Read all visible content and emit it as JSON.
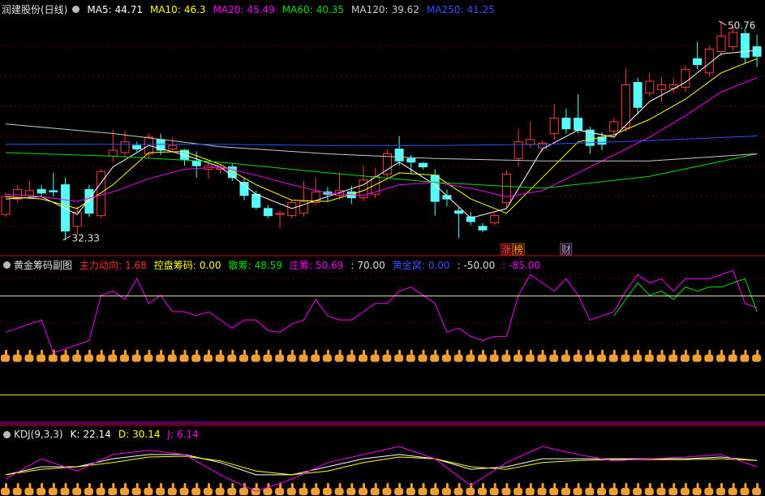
{
  "chart_data": [
    {
      "type": "candlestick",
      "title": "润建股份(日线)",
      "ylim": [
        31.1,
        52.53
      ],
      "open": [
        34.5,
        35.8,
        36.1,
        36.6,
        36.5,
        37.0,
        33.5,
        36.6,
        34.4,
        39.4,
        39.7,
        40.3,
        39.6,
        40.8,
        40.0,
        39.9,
        39.0,
        38.3,
        38.3,
        38.5,
        37.2,
        36.2,
        35.0,
        34.5,
        34.4,
        34.6,
        35.5,
        36.4,
        36.1,
        36.4,
        35.9,
        36.2,
        37.9,
        40.0,
        39.2,
        38.8,
        37.8,
        36.1,
        34.8,
        34.3,
        33.5,
        33.8,
        35.5,
        39.2,
        40.4,
        40.1,
        41.3,
        42.6,
        42.6,
        41.6,
        41.0,
        41.5,
        41.8,
        45.6,
        44.7,
        45.0,
        45.1,
        45.2,
        47.6,
        46.4,
        48.2,
        48.6,
        49.7,
        48.6
      ],
      "high": [
        36.4,
        37.0,
        37.3,
        37.0,
        38.0,
        37.6,
        35.2,
        37.0,
        38.3,
        41.6,
        41.5,
        40.6,
        41.3,
        41.3,
        41.0,
        40.0,
        39.8,
        38.9,
        38.7,
        38.8,
        37.6,
        36.5,
        35.3,
        34.8,
        35.7,
        37.3,
        37.6,
        36.8,
        38.1,
        36.9,
        38.6,
        38.4,
        40.0,
        41.1,
        39.5,
        38.9,
        38.3,
        36.6,
        35.1,
        34.7,
        33.8,
        34.6,
        38.2,
        41.7,
        42.3,
        40.7,
        43.8,
        43.4,
        44.6,
        41.9,
        41.4,
        42.6,
        46.8,
        46.0,
        46.4,
        46.0,
        46.0,
        47.0,
        49.0,
        48.7,
        50.76,
        50.3,
        50.1,
        49.6
      ],
      "low": [
        34.3,
        35.5,
        35.9,
        36.0,
        36.0,
        32.33,
        32.8,
        34.3,
        34.2,
        38.9,
        39.3,
        39.8,
        39.3,
        39.5,
        39.7,
        38.6,
        37.6,
        37.5,
        37.9,
        37.3,
        35.7,
        34.9,
        34.2,
        33.4,
        34.2,
        34.3,
        35.3,
        35.6,
        35.8,
        35.4,
        35.6,
        35.9,
        37.6,
        38.6,
        37.9,
        38.3,
        34.4,
        35.2,
        32.5,
        33.6,
        33.0,
        33.6,
        35.1,
        38.5,
        40.1,
        39.8,
        40.8,
        41.3,
        41.3,
        39.6,
        39.9,
        41.3,
        41.5,
        42.9,
        44.4,
        44.0,
        44.7,
        44.8,
        46.7,
        46.1,
        47.8,
        48.3,
        47.2,
        46.9
      ],
      "close": [
        36.0,
        36.6,
        36.5,
        36.3,
        36.4,
        33.1,
        34.7,
        34.6,
        38.1,
        39.9,
        40.6,
        40.0,
        41.0,
        39.9,
        40.3,
        39.1,
        38.6,
        38.6,
        38.4,
        37.6,
        36.1,
        35.1,
        34.4,
        34.6,
        35.5,
        35.6,
        36.4,
        36.2,
        36.5,
        35.9,
        37.4,
        37.7,
        39.6,
        39.0,
        38.9,
        38.5,
        35.6,
        35.8,
        34.6,
        33.9,
        33.2,
        34.4,
        37.9,
        40.6,
        40.8,
        40.5,
        42.6,
        41.7,
        41.6,
        40.3,
        40.4,
        42.3,
        45.4,
        43.5,
        45.7,
        45.4,
        45.4,
        46.7,
        47.1,
        48.4,
        49.5,
        49.8,
        47.7,
        47.8
      ],
      "up_color": "#ff3c3c",
      "down_color": "#54fcfc",
      "series": [
        {
          "name": "MA5:",
          "value": 44.71,
          "color": "#ffffff",
          "x": [
            0,
            3,
            6,
            9,
            12,
            15,
            18,
            21,
            24,
            27,
            30,
            33,
            36,
            39,
            42,
            45,
            48,
            51,
            54,
            57,
            60,
            63
          ],
          "values": [
            35.8,
            36.0,
            34.5,
            38.5,
            40.3,
            39.5,
            38.5,
            36.2,
            35.0,
            36.0,
            37.0,
            38.9,
            37.0,
            34.2,
            35.0,
            40.0,
            41.6,
            41.0,
            44.0,
            45.6,
            48.0,
            48.3
          ]
        },
        {
          "name": "MA10:",
          "value": 46.3,
          "color": "#ffff00",
          "x": [
            0,
            3,
            6,
            9,
            12,
            15,
            18,
            21,
            24,
            27,
            30,
            33,
            36,
            39,
            42,
            45,
            48,
            51,
            54,
            57,
            60,
            63
          ],
          "values": [
            36.0,
            35.8,
            35.0,
            37.0,
            39.7,
            39.8,
            38.7,
            37.0,
            35.7,
            35.6,
            36.5,
            38.0,
            37.8,
            35.8,
            34.6,
            37.6,
            40.6,
            41.2,
            42.5,
            44.2,
            46.4,
            47.6
          ]
        },
        {
          "name": "MA20:",
          "value": 45.49,
          "color": "#ff00ff",
          "x": [
            0,
            3,
            6,
            9,
            12,
            15,
            18,
            21,
            24,
            27,
            30,
            33,
            36,
            39,
            42,
            45,
            48,
            51,
            54,
            57,
            60,
            63
          ],
          "values": [
            36.2,
            36.0,
            35.6,
            36.4,
            37.5,
            38.3,
            38.5,
            37.8,
            37.0,
            36.3,
            36.1,
            37.0,
            37.2,
            36.7,
            36.0,
            36.5,
            38.0,
            39.5,
            41.0,
            42.8,
            44.8,
            46.0
          ]
        },
        {
          "name": "MA60:",
          "value": 40.35,
          "color": "#00e000",
          "x": [
            0,
            9,
            18,
            27,
            36,
            45,
            54,
            63
          ],
          "values": [
            39.7,
            39.4,
            38.9,
            38.0,
            37.2,
            36.7,
            37.7,
            39.6
          ]
        },
        {
          "name": "MA120:",
          "value": 39.62,
          "color": "#c8c8c8",
          "x": [
            0,
            9,
            18,
            27,
            36,
            45,
            54,
            63
          ],
          "values": [
            42.1,
            41.3,
            40.2,
            39.6,
            39.2,
            39.0,
            39.0,
            39.6
          ]
        },
        {
          "name": "MA250:",
          "value": 41.25,
          "color": "#2f4fff",
          "x": [
            0,
            9,
            18,
            27,
            36,
            45,
            54,
            63
          ],
          "values": [
            40.4,
            40.4,
            40.4,
            40.3,
            40.3,
            40.4,
            40.7,
            41.1
          ]
        }
      ],
      "annotations": [
        {
          "text": 50.76,
          "x": 60
        },
        {
          "text": 32.33,
          "x": 5
        }
      ],
      "signals": [
        {
          "text": "涨",
          "x": 42,
          "color": "#ff5050"
        },
        {
          "text": "榜",
          "x": 43,
          "color": "#ffb000"
        },
        {
          "text": "财",
          "x": 47,
          "color": "#7fb0ff"
        }
      ]
    },
    {
      "type": "line",
      "title": "黄金筹码副图",
      "ylim": [
        -85,
        116
      ],
      "series": [
        {
          "name": "主力动向:",
          "value": 1.68,
          "color": "#ff3030"
        },
        {
          "name": "控盘筹码:",
          "value": {
            "value": 0,
            "label": "0.00"
          },
          "color": "#ffff00"
        },
        {
          "name": "散筹:",
          "value": 48.59,
          "color": "#00e000",
          "x": [
            51,
            52,
            53,
            54,
            55,
            56,
            57,
            58,
            59,
            60,
            61,
            62,
            63
          ],
          "values": [
            46,
            66,
            86,
            71,
            76,
            66,
            81,
            76,
            81,
            81,
            86,
            91,
            51
          ]
        },
        {
          "name": "庄筹:",
          "value": 50.69,
          "color": "#ff00ff",
          "values": [
            26,
            31,
            36,
            41,
            1,
            6,
            11,
            16,
            71,
            76,
            66,
            91,
            61,
            71,
            51,
            51,
            46,
            51,
            41,
            31,
            41,
            41,
            28,
            26,
            36,
            41,
            66,
            46,
            41,
            41,
            51,
            61,
            61,
            76,
            81,
            71,
            61,
            26,
            31,
            21,
            16,
            21,
            21,
            71,
            96,
            86,
            76,
            91,
            71,
            41,
            46,
            51,
            76,
            96,
            86,
            91,
            76,
            91,
            91,
            91,
            96,
            101,
            61,
            56
          ]
        },
        {
          "name": ":",
          "value": {
            "value": 70,
            "label": "70.00"
          },
          "color": "#dddddd",
          "style": "hline",
          "line_color": "#e8e8b0"
        },
        {
          "name": "黄金窝:",
          "value": {
            "value": 0,
            "label": "0.00"
          },
          "color": "#2f4fff"
        },
        {
          "name": ":",
          "value": {
            "value": -50,
            "label": "-50.00"
          },
          "color": "#dddddd",
          "style": "hline",
          "line_color": "#e0e000"
        },
        {
          "name": ":",
          "value": {
            "value": -85,
            "label": "-85.00"
          },
          "color": "#ff00ff",
          "style": "hline",
          "line_color": "#b000b0"
        }
      ]
    },
    {
      "type": "line",
      "title": "KDJ(9,3,3)",
      "ylim": [
        -21,
        140
      ],
      "series": [
        {
          "name": "K:",
          "value": 22.14,
          "color": "#ffffff",
          "x": [
            0,
            3,
            6,
            9,
            12,
            15,
            18,
            21,
            24,
            27,
            30,
            33,
            36,
            39,
            42,
            45,
            48,
            51,
            54,
            57,
            60,
            63
          ],
          "values": [
            29,
            48,
            48,
            67,
            77,
            77,
            58,
            29,
            29,
            48,
            67,
            77,
            67,
            42,
            48,
            67,
            67,
            67,
            67,
            67,
            71,
            63
          ]
        },
        {
          "name": "D:",
          "value": 30.14,
          "color": "#ffff00",
          "x": [
            0,
            3,
            6,
            9,
            12,
            15,
            18,
            21,
            24,
            27,
            30,
            33,
            36,
            39,
            42,
            45,
            48,
            51,
            54,
            57,
            60,
            63
          ],
          "values": [
            29,
            42,
            48,
            58,
            71,
            73,
            62,
            38,
            29,
            38,
            58,
            71,
            67,
            48,
            42,
            58,
            63,
            65,
            65,
            65,
            67,
            63
          ]
        },
        {
          "name": "J:",
          "value": 6.14,
          "color": "#ff00ff",
          "x": [
            0,
            3,
            6,
            9,
            12,
            15,
            18,
            21,
            24,
            27,
            30,
            33,
            36,
            39,
            42,
            45,
            48,
            51,
            54,
            57,
            60,
            63
          ],
          "values": [
            19,
            67,
            38,
            77,
            87,
            77,
            29,
            -10,
            19,
            58,
            77,
            96,
            67,
            4,
            58,
            96,
            77,
            62,
            67,
            71,
            77,
            48
          ]
        }
      ]
    }
  ]
}
